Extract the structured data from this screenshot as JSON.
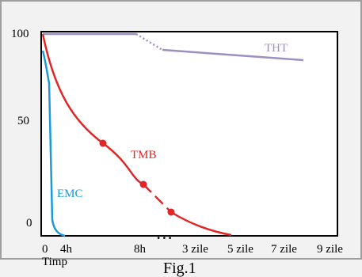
{
  "colors": {
    "page_background": "#f2f2f2",
    "frame": "#9e9e9e",
    "plot_background": "#ffffff",
    "axis": "#000000",
    "tmb": "#e02626",
    "tht": "#9e8fbe",
    "emc": "#1a9ad6"
  },
  "chart_data": {
    "type": "line",
    "title": "",
    "caption": "Fig.1",
    "xlabel": "Timp",
    "ylabel": "",
    "ylim": [
      0,
      100
    ],
    "y_ticks": [
      {
        "label": "100",
        "value": 100
      },
      {
        "label": "50",
        "value": 50
      },
      {
        "label": "0",
        "value": 0
      }
    ],
    "x_ticks": [
      "0",
      "4h",
      "8h",
      "3 zile",
      "5 zile",
      "7 zile",
      "9 zile"
    ],
    "x_axis_break": "...",
    "x_scale": "broken",
    "grid": false,
    "series": [
      {
        "name": "THT",
        "color": "#9e8fbe",
        "points": [
          {
            "x": "0",
            "y": 100
          },
          {
            "x": "8h",
            "y": 100
          },
          {
            "x": "~2 zile",
            "y": 92
          },
          {
            "x": "~6 zile",
            "y": 88.5
          }
        ],
        "dotted_segment": "8h – 2 zile"
      },
      {
        "name": "TMB",
        "color": "#e02626",
        "points": [
          {
            "x": "0",
            "y": 100
          },
          {
            "x": "~3h",
            "y": 46
          },
          {
            "x": "~7h",
            "y": 25
          },
          {
            "x": "~2 zile",
            "y": 11
          },
          {
            "x": "5 zile",
            "y": 0
          }
        ],
        "dashed_segment": "~7h – ~2 zile"
      },
      {
        "name": "EMC",
        "color": "#1a9ad6",
        "points": [
          {
            "x": "0",
            "y": 94
          },
          {
            "x": "~0.3h",
            "y": 75
          },
          {
            "x": "~0.5h",
            "y": 8
          },
          {
            "x": "~1h",
            "y": 0
          }
        ]
      }
    ]
  }
}
